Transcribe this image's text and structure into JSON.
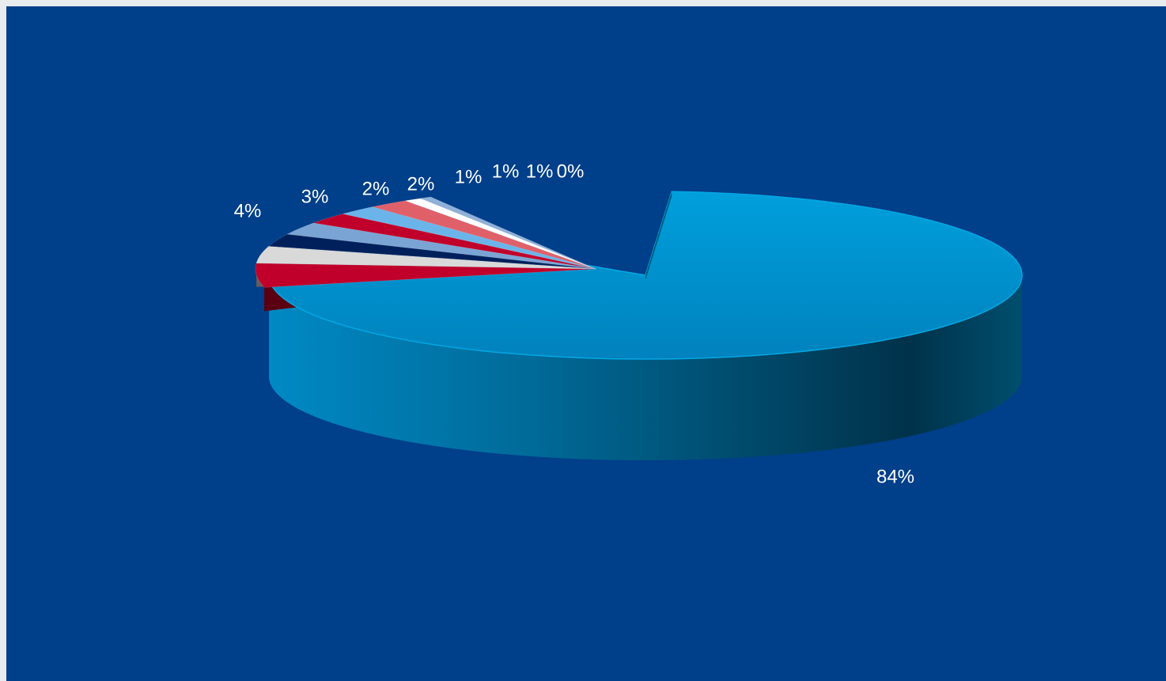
{
  "chart_data": {
    "type": "pie",
    "style": "3d-exploded",
    "background": "#003f8a",
    "slices": [
      {
        "label": "84%",
        "value": 84,
        "color": "#0096d6",
        "side": "#005a85"
      },
      {
        "label": "4%",
        "value": 4,
        "color": "#c0002a",
        "side": "#5a0012"
      },
      {
        "label": "3%",
        "value": 3,
        "color": "#d9d9d9",
        "side": "#5e5e5e"
      },
      {
        "label": "2%",
        "value": 2,
        "color": "#00205b",
        "side": "#00122f"
      },
      {
        "label": "2%",
        "value": 2,
        "color": "#7aa4d4",
        "side": "#31506f"
      },
      {
        "label": "1%",
        "value": 1,
        "color": "#c0002a",
        "side": "#5a0012"
      },
      {
        "label": "1%",
        "value": 1,
        "color": "#6ab4ea",
        "side": "#2d5f86"
      },
      {
        "label": "1%",
        "value": 1,
        "color": "#e0606a",
        "side": "#6e2a30"
      },
      {
        "label": "0%",
        "value": 0,
        "color": "#ffffff",
        "side": "#8a8a8a"
      },
      {
        "label": "",
        "value": 0,
        "color": "#8fb0d8",
        "side": "#40607f"
      }
    ]
  }
}
